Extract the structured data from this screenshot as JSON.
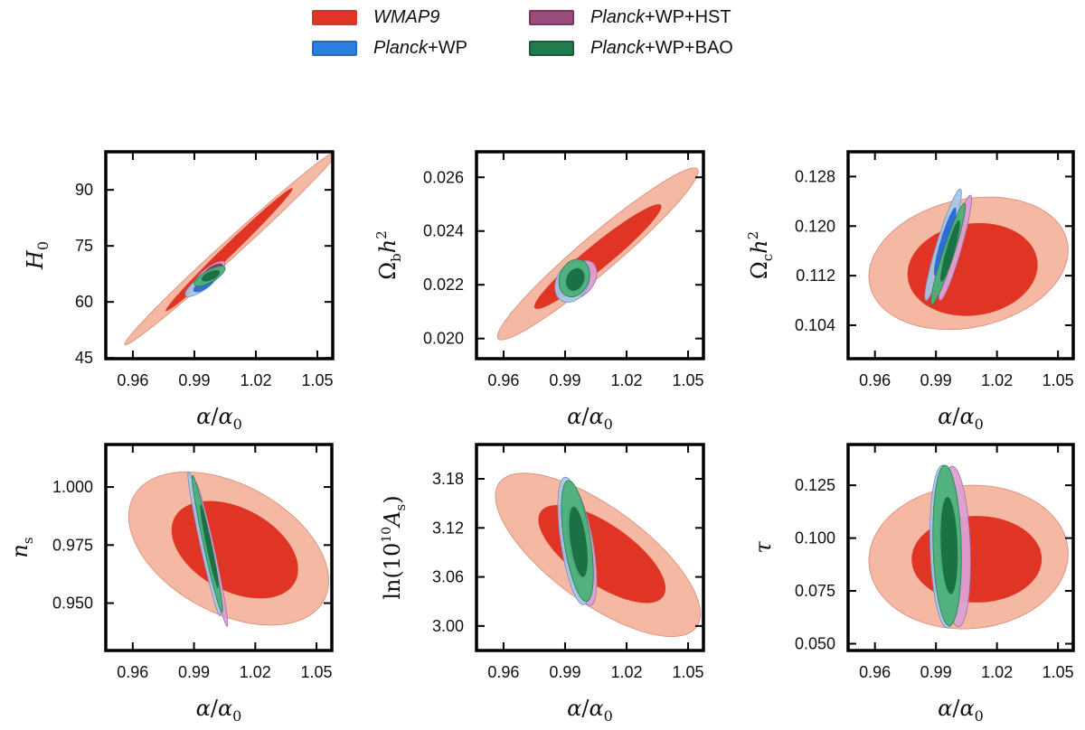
{
  "legend": {
    "items": [
      {
        "name": "WMAP9",
        "italic_part": "WMAP9",
        "rest": "",
        "color": "#e03425",
        "edge": "#cc3a2a"
      },
      {
        "name": "Planck+WP",
        "italic_part": "Planck",
        "rest": "+WP",
        "color": "#2a7fe0",
        "edge": "#1f6cc8"
      },
      {
        "name": "Planck+WP+HST",
        "italic_part": "Planck",
        "rest": "+WP+HST",
        "color": "#9a4d7b",
        "edge": "#7a3560"
      },
      {
        "name": "Planck+WP+BAO",
        "italic_part": "Planck",
        "rest": "+WP+BAO",
        "color": "#237a4c",
        "edge": "#165c38"
      }
    ]
  },
  "colors": {
    "wmap9_inner": "#e03425",
    "wmap9_outer": "#f5b8a2",
    "wp_inner": "#2768d4",
    "wp_outer": "#a4c8e8",
    "hst_inner": "#8a2e5e",
    "hst_outer": "#dca0d4",
    "bao_inner": "#1a6e42",
    "bao_outer": "#4cb17a"
  },
  "chart_data": [
    {
      "type": "contour",
      "id": "H0",
      "ylabel": "H0",
      "xlabel": "α/α0",
      "xlim": [
        0.9468,
        1.0575
      ],
      "ylim": [
        44.8,
        100.2
      ],
      "xticks": [
        "0.96",
        "0.99",
        "1.02",
        "1.05"
      ],
      "xtick_values": [
        0.96,
        0.99,
        1.02,
        1.05
      ],
      "yticks": [
        "45",
        "60",
        "75",
        "90"
      ],
      "ytick_values": [
        45,
        60,
        75,
        90
      ],
      "contours": [
        {
          "dataset": "WMAP9",
          "level": "95%",
          "cx": 1.008,
          "cy": 74.5,
          "sx": 0.052,
          "sy": 26.0,
          "rho": 0.993
        },
        {
          "dataset": "WMAP9",
          "level": "68%",
          "cx": 1.007,
          "cy": 74.0,
          "sx": 0.031,
          "sy": 16.5,
          "rho": 0.992
        },
        {
          "dataset": "Planck+WP+HST",
          "level": "95%",
          "cx": 0.9975,
          "cy": 67.6,
          "sx": 0.0075,
          "sy": 3.3,
          "rho": 0.8
        },
        {
          "dataset": "Planck+WP",
          "level": "95%",
          "cx": 0.994,
          "cy": 65.0,
          "sx": 0.0085,
          "sy": 3.6,
          "rho": 0.82
        },
        {
          "dataset": "Planck+WP",
          "level": "68%",
          "cx": 0.9945,
          "cy": 64.5,
          "sx": 0.005,
          "sy": 1.9,
          "rho": 0.7
        },
        {
          "dataset": "Planck+WP+HST",
          "level": "68%",
          "cx": 0.999,
          "cy": 68.3,
          "sx": 0.005,
          "sy": 2.0,
          "rho": 0.7
        },
        {
          "dataset": "Planck+WP+BAO",
          "level": "95%",
          "cx": 0.9975,
          "cy": 66.9,
          "sx": 0.0075,
          "sy": 2.7,
          "rho": 0.75
        },
        {
          "dataset": "Planck+WP+BAO",
          "level": "68%",
          "cx": 0.998,
          "cy": 67.0,
          "sx": 0.0045,
          "sy": 1.5,
          "rho": 0.6
        }
      ]
    },
    {
      "type": "contour",
      "id": "ombh2",
      "ylabel": "Ωb h²",
      "xlabel": "α/α0",
      "xlim": [
        0.9468,
        1.0575
      ],
      "ylim": [
        0.01925,
        0.02695
      ],
      "xticks": [
        "0.96",
        "0.99",
        "1.02",
        "1.05"
      ],
      "xtick_values": [
        0.96,
        0.99,
        1.02,
        1.05
      ],
      "yticks": [
        "0.020",
        "0.022",
        "0.024",
        "0.026"
      ],
      "ytick_values": [
        0.02,
        0.022,
        0.024,
        0.026
      ],
      "contours": [
        {
          "dataset": "WMAP9",
          "level": "95%",
          "cx": 1.006,
          "cy": 0.02315,
          "sx": 0.049,
          "sy": 0.0032,
          "rho": 0.96
        },
        {
          "dataset": "WMAP9",
          "level": "68%",
          "cx": 1.006,
          "cy": 0.02305,
          "sx": 0.031,
          "sy": 0.00195,
          "rho": 0.955
        },
        {
          "dataset": "Planck+WP+HST",
          "level": "95%",
          "cx": 0.9975,
          "cy": 0.0222,
          "sx": 0.008,
          "sy": 0.0007,
          "rho": 0.35
        },
        {
          "dataset": "Planck+WP",
          "level": "95%",
          "cx": 0.9935,
          "cy": 0.0221,
          "sx": 0.0085,
          "sy": 0.00075,
          "rho": 0.25
        },
        {
          "dataset": "Planck+WP",
          "level": "68%",
          "cx": 0.9945,
          "cy": 0.02215,
          "sx": 0.005,
          "sy": 0.00045,
          "rho": 0.25
        },
        {
          "dataset": "Planck+WP+BAO",
          "level": "95%",
          "cx": 0.9945,
          "cy": 0.02225,
          "sx": 0.0075,
          "sy": 0.0007,
          "rho": 0.2
        },
        {
          "dataset": "Planck+WP+BAO",
          "level": "68%",
          "cx": 0.995,
          "cy": 0.0222,
          "sx": 0.0045,
          "sy": 0.00042,
          "rho": 0.2
        }
      ]
    },
    {
      "type": "contour",
      "id": "omch2",
      "ylabel": "Ωc h²",
      "xlabel": "α/α0",
      "xlim": [
        0.9468,
        1.0575
      ],
      "ylim": [
        0.0986,
        0.132
      ],
      "xticks": [
        "0.96",
        "0.99",
        "1.02",
        "1.05"
      ],
      "xtick_values": [
        0.96,
        0.99,
        1.02,
        1.05
      ],
      "yticks": [
        "0.104",
        "0.112",
        "0.120",
        "0.128"
      ],
      "ytick_values": [
        0.104,
        0.112,
        0.12,
        0.128
      ],
      "contours": [
        {
          "dataset": "WMAP9",
          "level": "95%",
          "cx": 1.006,
          "cy": 0.114,
          "sx": 0.049,
          "sy": 0.0107,
          "rho": 0.2
        },
        {
          "dataset": "WMAP9",
          "level": "68%",
          "cx": 1.008,
          "cy": 0.113,
          "sx": 0.032,
          "sy": 0.0075,
          "rho": 0.1
        },
        {
          "dataset": "Planck+WP+HST",
          "level": "95%",
          "cx": 0.9995,
          "cy": 0.1165,
          "sx": 0.008,
          "sy": 0.0085,
          "rho": 0.92
        },
        {
          "dataset": "Planck+WP",
          "level": "95%",
          "cx": 0.9935,
          "cy": 0.117,
          "sx": 0.009,
          "sy": 0.009,
          "rho": 0.93
        },
        {
          "dataset": "Planck+WP",
          "level": "68%",
          "cx": 0.9945,
          "cy": 0.1175,
          "sx": 0.0055,
          "sy": 0.0055,
          "rho": 0.9
        },
        {
          "dataset": "Planck+WP+BAO",
          "level": "95%",
          "cx": 0.996,
          "cy": 0.1155,
          "sx": 0.0085,
          "sy": 0.0082,
          "rho": 0.94
        },
        {
          "dataset": "Planck+WP+BAO",
          "level": "68%",
          "cx": 0.997,
          "cy": 0.116,
          "sx": 0.0048,
          "sy": 0.005,
          "rho": 0.9
        }
      ]
    },
    {
      "type": "contour",
      "id": "ns",
      "ylabel": "ns",
      "xlabel": "α/α0",
      "xlim": [
        0.9468,
        1.0575
      ],
      "ylim": [
        0.9296,
        1.0183
      ],
      "xticks": [
        "0.96",
        "0.99",
        "1.02",
        "1.05"
      ],
      "xtick_values": [
        0.96,
        0.99,
        1.02,
        1.05
      ],
      "yticks": [
        "0.950",
        "0.975",
        "1.000"
      ],
      "ytick_values": [
        0.95,
        0.975,
        1.0
      ],
      "contours": [
        {
          "dataset": "WMAP9",
          "level": "95%",
          "cx": 1.007,
          "cy": 0.9735,
          "sx": 0.049,
          "sy": 0.033,
          "rho": -0.42
        },
        {
          "dataset": "WMAP9",
          "level": "68%",
          "cx": 1.01,
          "cy": 0.973,
          "sx": 0.031,
          "sy": 0.021,
          "rho": -0.4
        },
        {
          "dataset": "Planck+WP+HST",
          "level": "95%",
          "cx": 0.9985,
          "cy": 0.971,
          "sx": 0.008,
          "sy": 0.031,
          "rho": -0.965
        },
        {
          "dataset": "Planck+WP",
          "level": "95%",
          "cx": 0.995,
          "cy": 0.9755,
          "sx": 0.008,
          "sy": 0.031,
          "rho": -0.965
        },
        {
          "dataset": "Planck+WP",
          "level": "68%",
          "cx": 0.9965,
          "cy": 0.974,
          "sx": 0.005,
          "sy": 0.0185,
          "rho": -0.96
        },
        {
          "dataset": "Planck+WP+BAO",
          "level": "95%",
          "cx": 0.9965,
          "cy": 0.9755,
          "sx": 0.0075,
          "sy": 0.0295,
          "rho": -0.965
        },
        {
          "dataset": "Planck+WP+BAO",
          "level": "68%",
          "cx": 0.9975,
          "cy": 0.9745,
          "sx": 0.0045,
          "sy": 0.018,
          "rho": -0.95
        }
      ]
    },
    {
      "type": "contour",
      "id": "lnAs",
      "ylabel": "ln(10¹⁰ As)",
      "xlabel": "α/α0",
      "xlim": [
        0.9468,
        1.0575
      ],
      "ylim": [
        2.97,
        3.222
      ],
      "xticks": [
        "0.96",
        "0.99",
        "1.02",
        "1.05"
      ],
      "xtick_values": [
        0.96,
        0.99,
        1.02,
        1.05
      ],
      "yticks": [
        "3.00",
        "3.06",
        "3.12",
        "3.18"
      ],
      "ytick_values": [
        3.0,
        3.06,
        3.12,
        3.18
      ],
      "contours": [
        {
          "dataset": "WMAP9",
          "level": "95%",
          "cx": 1.006,
          "cy": 3.087,
          "sx": 0.05,
          "sy": 0.1,
          "rho": -0.72
        },
        {
          "dataset": "WMAP9",
          "level": "68%",
          "cx": 1.008,
          "cy": 3.088,
          "sx": 0.031,
          "sy": 0.06,
          "rho": -0.7
        },
        {
          "dataset": "Planck+WP+HST",
          "level": "95%",
          "cx": 0.997,
          "cy": 3.1,
          "sx": 0.0085,
          "sy": 0.075,
          "rho": -0.6
        },
        {
          "dataset": "Planck+WP",
          "level": "95%",
          "cx": 0.9945,
          "cy": 3.104,
          "sx": 0.008,
          "sy": 0.078,
          "rho": -0.55
        },
        {
          "dataset": "Planck+WP",
          "level": "68%",
          "cx": 0.9955,
          "cy": 3.103,
          "sx": 0.005,
          "sy": 0.045,
          "rho": -0.5
        },
        {
          "dataset": "Planck+WP+BAO",
          "level": "95%",
          "cx": 0.996,
          "cy": 3.104,
          "sx": 0.0078,
          "sy": 0.074,
          "rho": -0.55
        },
        {
          "dataset": "Planck+WP+BAO",
          "level": "68%",
          "cx": 0.9965,
          "cy": 3.103,
          "sx": 0.0045,
          "sy": 0.043,
          "rho": -0.5
        }
      ]
    },
    {
      "type": "contour",
      "id": "tau",
      "ylabel": "τ",
      "xlabel": "α/α0",
      "xlim": [
        0.9468,
        1.0575
      ],
      "ylim": [
        0.0468,
        0.1443
      ],
      "xticks": [
        "0.96",
        "0.99",
        "1.02",
        "1.05"
      ],
      "xtick_values": [
        0.96,
        0.99,
        1.02,
        1.05
      ],
      "yticks": [
        "0.050",
        "0.075",
        "0.100",
        "0.125"
      ],
      "ytick_values": [
        0.05,
        0.075,
        0.1,
        0.125
      ],
      "contours": [
        {
          "dataset": "WMAP9",
          "level": "95%",
          "cx": 1.006,
          "cy": 0.091,
          "sx": 0.049,
          "sy": 0.034,
          "rho": 0.05
        },
        {
          "dataset": "WMAP9",
          "level": "68%",
          "cx": 1.01,
          "cy": 0.09,
          "sx": 0.032,
          "sy": 0.0205,
          "rho": 0.0
        },
        {
          "dataset": "Planck+WP+HST",
          "level": "95%",
          "cx": 0.9995,
          "cy": 0.096,
          "sx": 0.0075,
          "sy": 0.038,
          "rho": -0.2
        },
        {
          "dataset": "Planck+WP",
          "level": "95%",
          "cx": 0.9945,
          "cy": 0.096,
          "sx": 0.0075,
          "sy": 0.0385,
          "rho": -0.15
        },
        {
          "dataset": "Planck+WP",
          "level": "68%",
          "cx": 0.996,
          "cy": 0.0965,
          "sx": 0.0045,
          "sy": 0.023,
          "rho": -0.2
        },
        {
          "dataset": "Planck+WP+BAO",
          "level": "95%",
          "cx": 0.9955,
          "cy": 0.0965,
          "sx": 0.007,
          "sy": 0.038,
          "rho": -0.15
        },
        {
          "dataset": "Planck+WP+BAO",
          "level": "68%",
          "cx": 0.9965,
          "cy": 0.0965,
          "sx": 0.0042,
          "sy": 0.023,
          "rho": -0.2
        }
      ]
    }
  ]
}
